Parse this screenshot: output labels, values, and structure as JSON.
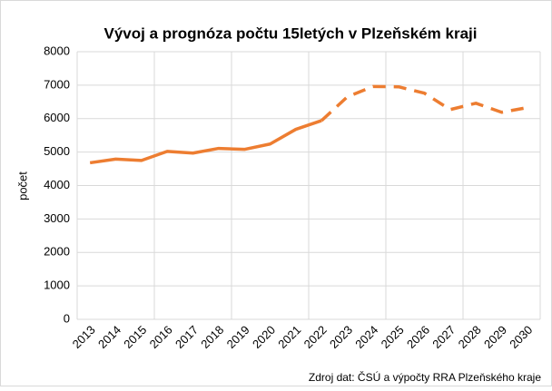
{
  "chart_data": {
    "type": "line",
    "title": "Vývoj a prognóza počtu 15letých v Plzeňském kraji",
    "y_label": "počet",
    "source": "Zdroj dat: ČSÚ a výpočty RRA Plzeňského kraje",
    "categories": [
      "2013",
      "2014",
      "2015",
      "2016",
      "2017",
      "2018",
      "2019",
      "2020",
      "2021",
      "2022",
      "2023",
      "2024",
      "2025",
      "2026",
      "2027",
      "2028",
      "2029",
      "2030"
    ],
    "series": [
      {
        "color": "#ed7d31",
        "dashed": false,
        "values": [
          4680,
          4790,
          4750,
          5020,
          4970,
          5110,
          5080,
          5240,
          5680,
          5940,
          null,
          null,
          null,
          null,
          null,
          null,
          null,
          null
        ]
      },
      {
        "color": "#ed7d31",
        "dashed": true,
        "values": [
          null,
          null,
          null,
          null,
          null,
          null,
          null,
          null,
          null,
          5940,
          6650,
          6960,
          6950,
          6760,
          6270,
          6460,
          6190,
          6330
        ]
      }
    ],
    "ylim": [
      0,
      8000
    ],
    "yticks": [
      0,
      1000,
      2000,
      3000,
      4000,
      5000,
      6000,
      7000,
      8000
    ],
    "grid": true
  }
}
